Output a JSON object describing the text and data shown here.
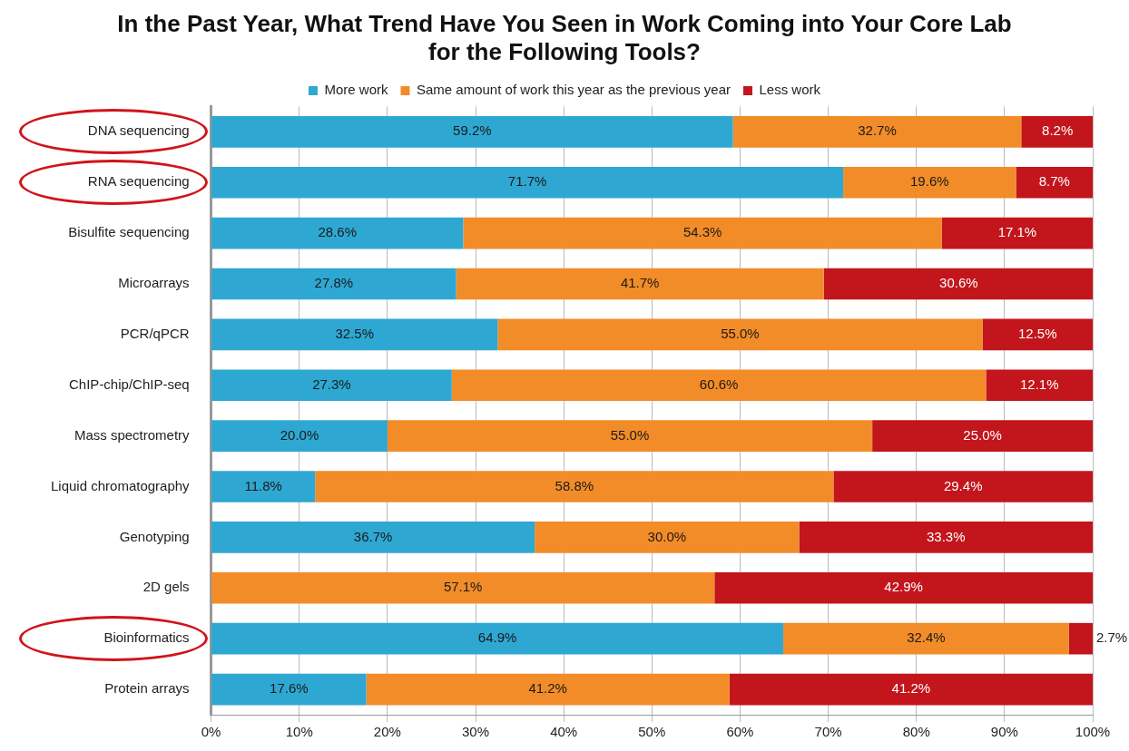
{
  "chart_data": {
    "type": "bar",
    "orientation": "horizontal",
    "stacked": true,
    "title": "In the Past Year, What Trend Have You Seen in Work Coming into Your Core Lab for the Following Tools?",
    "categories": [
      "DNA sequencing",
      "RNA sequencing",
      "Bisulfite sequencing",
      "Microarrays",
      "PCR/qPCR",
      "ChIP-chip/ChIP-seq",
      "Mass spectrometry",
      "Liquid chromatography",
      "Genotyping",
      "2D gels",
      "Bioinformatics",
      "Protein arrays"
    ],
    "series": [
      {
        "name": "More work",
        "color": "#2ea8d2",
        "values": [
          59.2,
          71.7,
          28.6,
          27.8,
          32.5,
          27.3,
          20.0,
          11.8,
          36.7,
          0,
          64.9,
          17.6
        ],
        "value_labels": [
          "59.2%",
          "71.7%",
          "28.6%",
          "27.8%",
          "32.5%",
          "27.3%",
          "20.0%",
          "11.8%",
          "36.7%",
          null,
          "64.9%",
          "17.6%"
        ]
      },
      {
        "name": "Same amount of work this year as the previous year",
        "color": "#f28c28",
        "values": [
          32.7,
          19.6,
          54.3,
          41.7,
          55.0,
          60.6,
          55.0,
          58.8,
          30.0,
          57.1,
          32.4,
          41.2
        ],
        "value_labels": [
          "32.7%",
          "19.6%",
          "54.3%",
          "41.7%",
          "55.0%",
          "60.6%",
          "55.0%",
          "58.8%",
          "30.0%",
          "57.1%",
          "32.4%",
          "41.2%"
        ]
      },
      {
        "name": "Less work",
        "color": "#c2161c",
        "values": [
          8.2,
          8.7,
          17.1,
          30.6,
          12.5,
          12.1,
          25.0,
          29.4,
          33.3,
          42.9,
          2.7,
          41.2
        ],
        "value_labels": [
          "8.2%",
          "8.7%",
          "17.1%",
          "30.6%",
          "12.5%",
          "12.1%",
          "25.0%",
          "29.4%",
          "33.3%",
          "42.9%",
          "2.7%",
          "41.2%"
        ]
      }
    ],
    "xlim": [
      0,
      100
    ],
    "xticks": [
      {
        "value": 0,
        "label": "0%"
      },
      {
        "value": 10,
        "label": "10%"
      },
      {
        "value": 20,
        "label": "20%"
      },
      {
        "value": 30,
        "label": "30%"
      },
      {
        "value": 40,
        "label": "40%"
      },
      {
        "value": 50,
        "label": "50%"
      },
      {
        "value": 60,
        "label": "60%"
      },
      {
        "value": 70,
        "label": "70%"
      },
      {
        "value": 80,
        "label": "80%"
      },
      {
        "value": 90,
        "label": "90%"
      },
      {
        "value": 100,
        "label": "100%"
      }
    ],
    "grid": "x",
    "legend": "top"
  }
}
